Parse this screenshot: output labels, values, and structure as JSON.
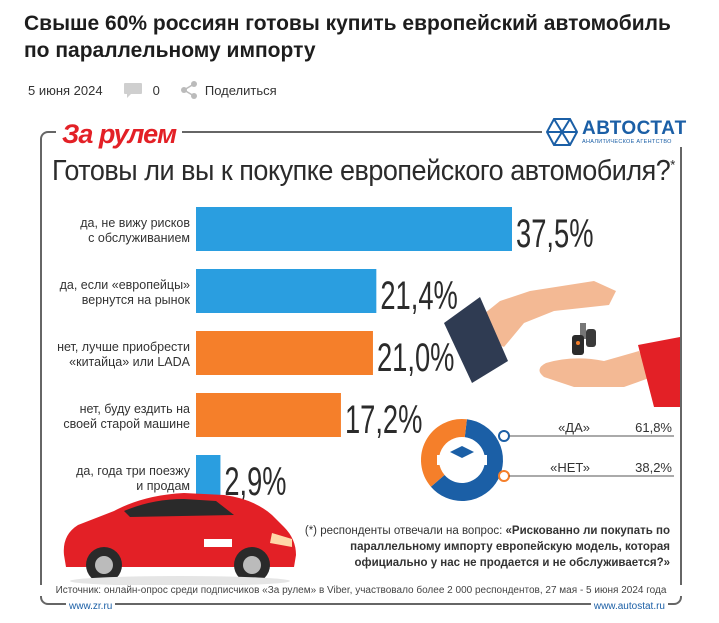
{
  "article": {
    "title": "Свыше 60% россиян готовы купить европейский автомобиль по параллельному импорту",
    "date": "5 июня 2024",
    "comments_count": "0",
    "share_label": "Поделиться"
  },
  "infographic": {
    "logo_left": "За рулем",
    "logo_right": "АВТОСТАТ",
    "logo_right_sub": "АНАЛИТИЧЕСКОЕ АГЕНТСТВО",
    "question": "Готовы ли вы к покупке европейского автомобиля?",
    "question_mark": "*",
    "footnote_prefix": "(*) респонденты отвечали на вопрос: ",
    "footnote_question": "«Рискованно ли покупать по параллельному импорту европейскую модель, которая официально у нас не продается и не обслуживается?»",
    "source": "Источник: онлайн-опрос среди подписчиков «За рулем» в Viber, участвовало более 2 000 респондентов, 27 мая - 5 июня 2024 года",
    "site_left": "www.zr.ru",
    "site_right": "www.autostat.ru"
  },
  "chart_data": [
    {
      "type": "bar",
      "orientation": "horizontal",
      "title": "Готовы ли вы к покупке европейского автомобиля?",
      "categories": [
        [
          "да, не вижу рисков",
          "с обслуживанием"
        ],
        [
          "да, если «европейцы»",
          "вернутся на рынок"
        ],
        [
          "нет, лучше приобрести",
          "«китайца» или LADA"
        ],
        [
          "нет, буду ездить на",
          "своей старой машине"
        ],
        [
          "да, года три поезжу",
          "и продам"
        ]
      ],
      "values": [
        37.5,
        21.4,
        21.0,
        17.2,
        2.9
      ],
      "value_labels": [
        "37,5%",
        "21,4%",
        "21,0%",
        "17,2%",
        "2,9%"
      ],
      "colors": [
        "#2a9ee0",
        "#2a9ee0",
        "#f57f2a",
        "#f57f2a",
        "#2a9ee0"
      ],
      "xlim": [
        0,
        37.5
      ]
    },
    {
      "type": "pie",
      "style": "donut",
      "labels": [
        "«ДА»",
        "«НЕТ»"
      ],
      "values": [
        61.8,
        38.2
      ],
      "value_labels": [
        "61,8%",
        "38,2%"
      ],
      "colors": [
        "#1b5fa6",
        "#f57f2a"
      ]
    }
  ]
}
